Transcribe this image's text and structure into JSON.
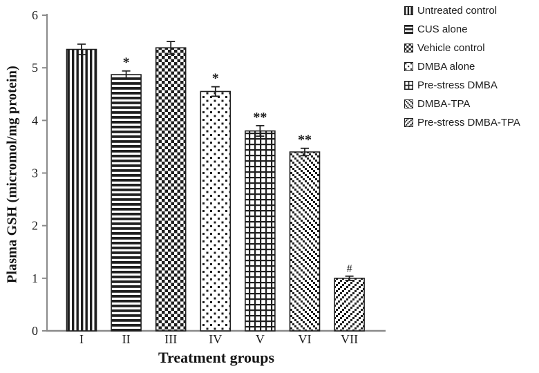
{
  "chart_data": {
    "type": "bar",
    "title": "",
    "xlabel": "Treatment groups",
    "ylabel": "Plasma GSH (micromol/mg protein)",
    "ylim": [
      0,
      6
    ],
    "yticks": [
      0,
      1,
      2,
      3,
      4,
      5,
      6
    ],
    "categories": [
      "I",
      "II",
      "III",
      "IV",
      "V",
      "VI",
      "VII"
    ],
    "values": [
      5.35,
      4.87,
      5.38,
      4.55,
      3.8,
      3.4,
      1.0
    ],
    "errors": [
      0.1,
      0.07,
      0.12,
      0.09,
      0.1,
      0.07,
      0.04
    ],
    "significance": [
      "",
      "*",
      "",
      "*",
      "**",
      "**",
      "#"
    ],
    "patterns": [
      "vertical-stripes",
      "horizontal-stripes",
      "checkerboard",
      "dots",
      "grid",
      "diagonal-backslash",
      "diagonal-slash"
    ],
    "legend": [
      {
        "label": "Untreated control",
        "pattern": "vertical-stripes"
      },
      {
        "label": "CUS alone",
        "pattern": "horizontal-stripes"
      },
      {
        "label": "Vehicle control",
        "pattern": "checkerboard"
      },
      {
        "label": "DMBA alone",
        "pattern": "dots"
      },
      {
        "label": "Pre-stress DMBA",
        "pattern": "grid"
      },
      {
        "label": "DMBA-TPA",
        "pattern": "diagonal-backslash"
      },
      {
        "label": "Pre-stress DMBA-TPA",
        "pattern": "diagonal-slash"
      }
    ],
    "legend_position": "top-right",
    "grid": false,
    "colors": {
      "bar_fill": "#ffffff",
      "pattern_ink": "#1f1f1f",
      "axis": "#8a8a8a",
      "text": "#1c1c1c"
    }
  }
}
